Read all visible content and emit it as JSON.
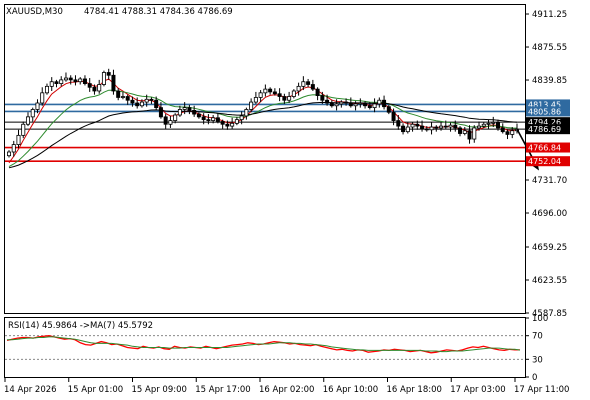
{
  "header": {
    "symbol": "XAUUSD,M30",
    "ohlc": "4784.41 4788.31 4784.36 4786.69"
  },
  "colors": {
    "bull": "#000000",
    "bear": "#000000",
    "ma_fast": "#d10000",
    "ma_mid": "#2e8b2e",
    "ma_slow": "#000000",
    "level_blue": "#2f6aa0",
    "level_red": "#e00000",
    "arrow": "#000000",
    "rsi": "#ff0000",
    "rsi_ma": "#2e8b2e"
  },
  "chart_data": [
    {
      "type": "candlestick",
      "title": "XAUUSD,M30",
      "ylim": [
        4587.85,
        4921.0
      ],
      "price_ticks": [
        "4911.25",
        "4875.55",
        "4839.85",
        "4731.70",
        "4696.00",
        "4659.25",
        "4623.55",
        "4587.85"
      ],
      "x_ticks": [
        "14 Apr 2026",
        "15 Apr 01:00",
        "15 Apr 09:00",
        "15 Apr 17:00",
        "16 Apr 02:00",
        "16 Apr 10:00",
        "16 Apr 18:00",
        "17 Apr 03:00",
        "17 Apr 11:00"
      ],
      "close_series": [
        4762,
        4770,
        4780,
        4792,
        4800,
        4808,
        4815,
        4826,
        4833,
        4838,
        4836,
        4840,
        4842,
        4840,
        4838,
        4841,
        4836,
        4832,
        4828,
        4835,
        4848,
        4845,
        4828,
        4821,
        4822,
        4818,
        4815,
        4812,
        4816,
        4819,
        4818,
        4810,
        4800,
        4792,
        4796,
        4802,
        4808,
        4810,
        4807,
        4803,
        4800,
        4797,
        4796,
        4799,
        4795,
        4792,
        4790,
        4793,
        4797,
        4801,
        4808,
        4816,
        4821,
        4826,
        4830,
        4827,
        4825,
        4822,
        4818,
        4822,
        4828,
        4833,
        4838,
        4835,
        4830,
        4823,
        4818,
        4815,
        4812,
        4814,
        4816,
        4815,
        4812,
        4814,
        4815,
        4812,
        4810,
        4814,
        4818,
        4811,
        4805,
        4796,
        4790,
        4784,
        4789,
        4792,
        4790,
        4787,
        4786,
        4789,
        4788,
        4790,
        4789,
        4791,
        4788,
        4782,
        4785,
        4776,
        4788,
        4790,
        4792,
        4793,
        4794,
        4788,
        4784,
        4781,
        4785,
        4786.69
      ],
      "levels": [
        {
          "price": 4813.45,
          "label": "4813.45",
          "color": "blue"
        },
        {
          "price": 4805.86,
          "label": "4805.86",
          "color": "blue"
        },
        {
          "price": 4794.26,
          "label": "4794.26",
          "color": "black"
        },
        {
          "price": 4786.69,
          "label": "4786.69",
          "color": "black"
        },
        {
          "price": 4766.84,
          "label": "4766.84",
          "color": "red"
        },
        {
          "price": 4752.04,
          "label": "4752.04",
          "color": "red"
        }
      ],
      "forecast_arrow_target": 4742
    },
    {
      "type": "line",
      "title": "RSI(14) 45.9864 ->MA(7) 45.5792",
      "ylim": [
        0,
        100
      ],
      "ticks": [
        "100",
        "70",
        "30",
        "0"
      ],
      "levels": [
        70,
        30
      ],
      "series": [
        {
          "values": [
            62,
            64,
            66,
            67,
            67,
            66,
            68,
            69,
            70,
            68,
            66,
            64,
            65,
            63,
            58,
            55,
            54,
            57,
            60,
            58,
            55,
            56,
            53,
            50,
            49,
            48,
            52,
            50,
            49,
            51,
            48,
            47,
            52,
            50,
            49,
            51,
            50,
            49,
            52,
            50,
            48,
            50,
            52,
            54,
            55,
            56,
            58,
            57,
            55,
            56,
            58,
            60,
            59,
            58,
            56,
            57,
            55,
            54,
            53,
            55,
            52,
            50,
            48,
            46,
            47,
            45,
            44,
            46,
            45,
            42,
            43,
            44,
            46,
            45,
            47,
            46,
            45,
            43,
            44,
            45,
            43,
            41,
            42,
            44,
            46,
            45,
            44,
            46,
            49,
            51,
            50,
            52,
            50,
            48,
            46,
            45,
            47,
            46,
            45.98
          ]
        },
        {
          "values": [
            63,
            63,
            64,
            65,
            66,
            66,
            67,
            67,
            68,
            68,
            67,
            66,
            65,
            64,
            62,
            60,
            58,
            57,
            57,
            57,
            57,
            56,
            55,
            54,
            52,
            51,
            50,
            50,
            50,
            50,
            50,
            49,
            49,
            49,
            50,
            50,
            50,
            50,
            50,
            50,
            50,
            50,
            50,
            51,
            52,
            53,
            54,
            55,
            56,
            56,
            56,
            57,
            58,
            58,
            58,
            57,
            57,
            56,
            56,
            55,
            54,
            53,
            51,
            50,
            49,
            48,
            47,
            46,
            46,
            45,
            45,
            45,
            45,
            45,
            45,
            45,
            45,
            45,
            45,
            45,
            44,
            44,
            44,
            43,
            43,
            44,
            44,
            44,
            45,
            46,
            47,
            48,
            49,
            49,
            49,
            48,
            47,
            47,
            45.58
          ]
        }
      ]
    }
  ]
}
